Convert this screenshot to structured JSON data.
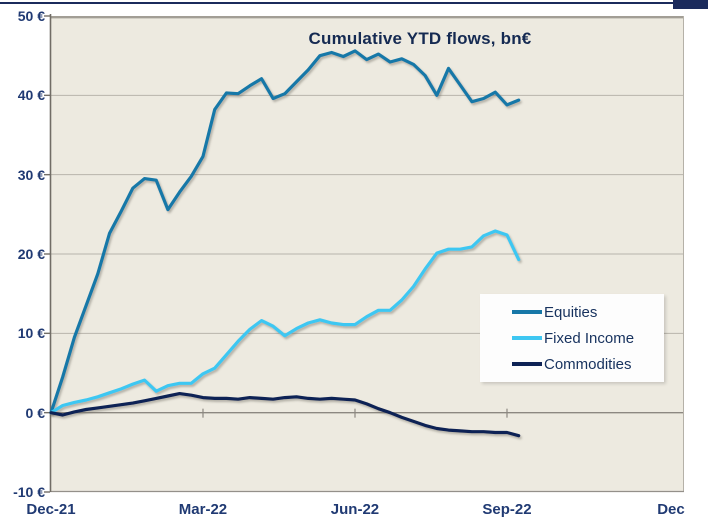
{
  "page": {
    "background": "#FFFFFF"
  },
  "decor": {
    "accent_color": "#1B2B5C"
  },
  "text_colors": {
    "title": "#152A52",
    "axis_labels": "#203A73",
    "legend_labels": "#17325E"
  },
  "chart_data": {
    "type": "line",
    "title": "Cumulative YTD flows, bn€",
    "plot_background": "#EDEAE0",
    "grid": "on",
    "x_axis": {
      "unit": "weeks since Dec-21",
      "tick_labels": [
        "Dec-21",
        "Mar-22",
        "Jun-22",
        "Sep-22",
        "Dec"
      ],
      "tick_weeks": [
        0,
        13,
        26,
        39,
        52
      ],
      "range_weeks": [
        0,
        54
      ]
    },
    "y_axis": {
      "unit": "bn€",
      "tick_labels": [
        "50 €",
        "40 €",
        "30 €",
        "20 €",
        "10 €",
        "0 €",
        "-10 €"
      ],
      "tick_values": [
        50,
        40,
        30,
        20,
        10,
        0,
        -10
      ],
      "range": [
        -10,
        50
      ]
    },
    "legend": {
      "position": "middle-right",
      "entries": [
        "Equities",
        "Fixed Income",
        "Commodities"
      ]
    },
    "series": [
      {
        "name": "Equities",
        "color": "#1878A8",
        "week_start": 0,
        "values": [
          0,
          4.5,
          9.5,
          13.5,
          17.5,
          22.6,
          25.4,
          28.3,
          29.5,
          29.3,
          25.6,
          27.8,
          29.8,
          32.3,
          38.2,
          40.3,
          40.2,
          41.2,
          42.1,
          39.6,
          40.2,
          41.7,
          43.2,
          45.0,
          45.4,
          44.9,
          45.6,
          44.5,
          45.2,
          44.2,
          44.6,
          43.9,
          42.5,
          40.0,
          43.4,
          41.3,
          39.2,
          39.6,
          40.4,
          38.8,
          39.4
        ]
      },
      {
        "name": "Fixed Income",
        "color": "#3EC7F2",
        "week_start": 0,
        "values": [
          0,
          0.9,
          1.3,
          1.6,
          2.0,
          2.5,
          3.0,
          3.6,
          4.1,
          2.7,
          3.4,
          3.7,
          3.7,
          4.9,
          5.6,
          7.3,
          9.0,
          10.5,
          11.6,
          10.9,
          9.7,
          10.6,
          11.3,
          11.7,
          11.3,
          11.1,
          11.1,
          12.1,
          12.9,
          12.9,
          14.2,
          15.9,
          18.1,
          20.1,
          20.6,
          20.6,
          20.9,
          22.3,
          22.9,
          22.4,
          19.3
        ]
      },
      {
        "name": "Commodities",
        "color": "#0E2355",
        "week_start": 0,
        "values": [
          0,
          -0.3,
          0.1,
          0.4,
          0.6,
          0.8,
          1.0,
          1.2,
          1.5,
          1.8,
          2.1,
          2.4,
          2.2,
          1.9,
          1.8,
          1.8,
          1.7,
          1.9,
          1.8,
          1.7,
          1.9,
          2.0,
          1.8,
          1.7,
          1.8,
          1.7,
          1.6,
          1.1,
          0.5,
          0.0,
          -0.6,
          -1.1,
          -1.6,
          -2.0,
          -2.2,
          -2.3,
          -2.4,
          -2.4,
          -2.5,
          -2.5,
          -2.9
        ]
      }
    ]
  }
}
